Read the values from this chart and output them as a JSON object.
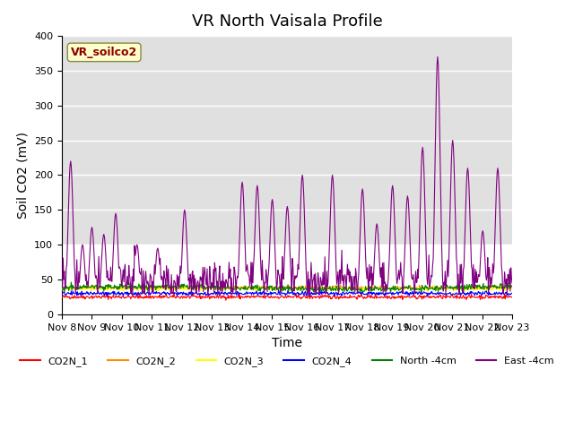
{
  "title": "VR North Vaisala Profile",
  "ylabel": "Soil CO2 (mV)",
  "xlabel": "Time",
  "xlim_days": [
    0,
    15
  ],
  "ylim": [
    0,
    400
  ],
  "yticks": [
    0,
    50,
    100,
    150,
    200,
    250,
    300,
    350,
    400
  ],
  "x_tick_labels": [
    "Nov 8",
    "Nov 9",
    "Nov 10",
    "Nov 11",
    "Nov 12",
    "Nov 13",
    "Nov 14",
    "Nov 15",
    "Nov 16",
    "Nov 17",
    "Nov 18",
    "Nov 19",
    "Nov 20",
    "Nov 21",
    "Nov 22",
    "Nov 23"
  ],
  "annotation_text": "VR_soilco2",
  "annotation_color": "#8B0000",
  "annotation_bg": "#FFFFCC",
  "bg_gray_ymin": 100,
  "bg_gray_ymax": 400,
  "legend_labels": [
    "CO2N_1",
    "CO2N_2",
    "CO2N_3",
    "CO2N_4",
    "North -4cm",
    "East -4cm"
  ],
  "legend_colors": [
    "red",
    "#FF8C00",
    "yellow",
    "blue",
    "green",
    "purple"
  ],
  "line_colors": {
    "CO2N_1": "red",
    "CO2N_2": "#FF8C00",
    "CO2N_3": "yellow",
    "CO2N_4": "blue",
    "North_4cm": "green",
    "East_4cm": "purple"
  },
  "title_fontsize": 13,
  "axis_fontsize": 10,
  "tick_fontsize": 8
}
